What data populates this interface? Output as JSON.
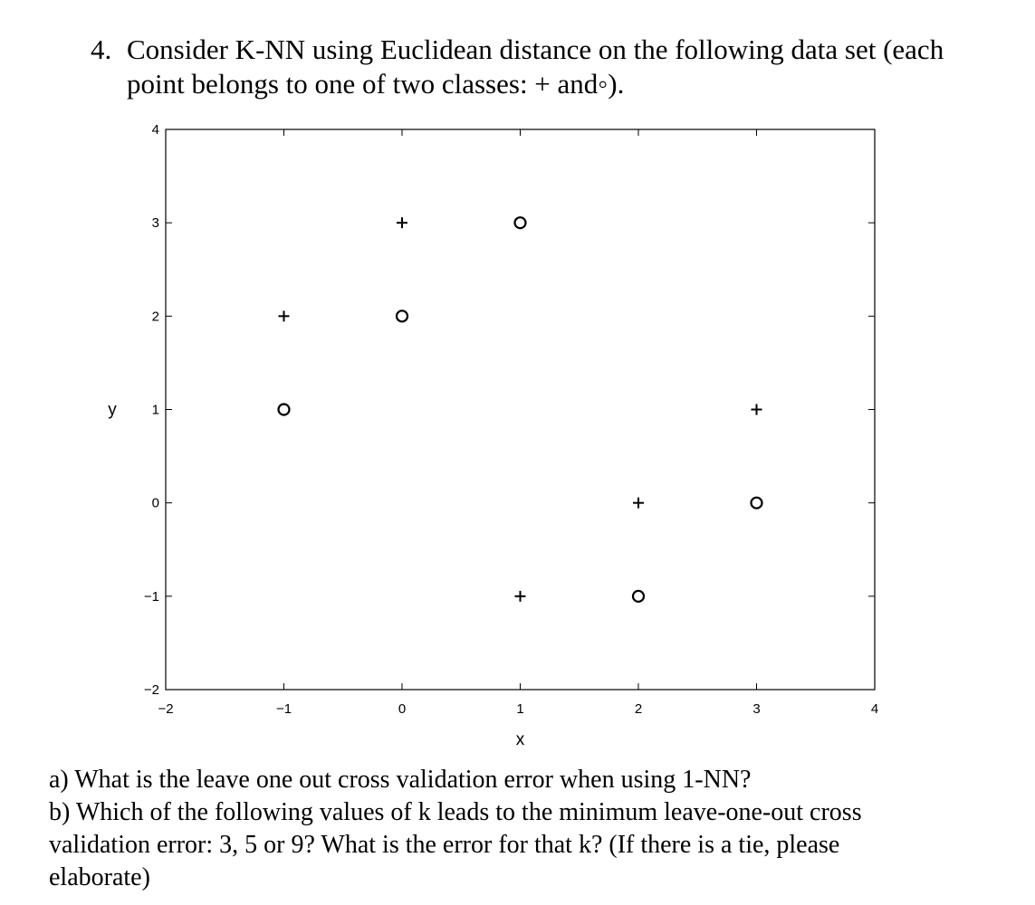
{
  "question": {
    "number": "4.",
    "line1": "Consider K-NN using Euclidean distance on the following data set (each",
    "line2": "point belongs to one of two classes: + and◦)."
  },
  "chart_data": {
    "type": "scatter",
    "title": "",
    "xlabel": "x",
    "ylabel": "y",
    "xlim": [
      -2,
      4
    ],
    "ylim": [
      -2,
      4
    ],
    "xticks": [
      -2,
      -1,
      0,
      1,
      2,
      3,
      4
    ],
    "yticks": [
      -2,
      -1,
      0,
      1,
      2,
      3,
      4
    ],
    "xtick_labels": [
      "−2",
      "−1",
      "0",
      "1",
      "2",
      "3",
      "4"
    ],
    "ytick_labels": [
      "−2",
      "−1",
      "0",
      "1",
      "2",
      "3",
      "4"
    ],
    "grid": false,
    "series": [
      {
        "marker": "plus",
        "points": [
          {
            "x": -1,
            "y": 2
          },
          {
            "x": 0,
            "y": 3
          },
          {
            "x": 1,
            "y": -1
          },
          {
            "x": 2,
            "y": 0
          },
          {
            "x": 3,
            "y": 1
          }
        ]
      },
      {
        "marker": "circle",
        "points": [
          {
            "x": -1,
            "y": 1
          },
          {
            "x": 0,
            "y": 2
          },
          {
            "x": 1,
            "y": 3
          },
          {
            "x": 2,
            "y": -1
          },
          {
            "x": 3,
            "y": 0
          }
        ]
      }
    ]
  },
  "subquestions": {
    "a": "a)  What is the leave one out cross validation error when using 1-NN?",
    "b1": "b) Which of the following values of k leads to the minimum leave-one-out cross",
    "b2": "validation error: 3, 5 or 9? What is the error for that k? (If there is a tie, please",
    "b3": "elaborate)"
  }
}
